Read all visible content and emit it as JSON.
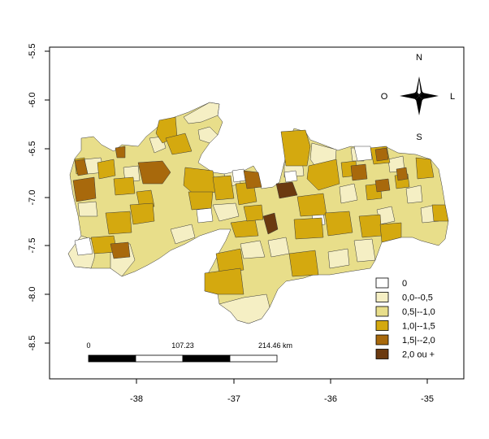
{
  "axes": {
    "x_ticks": [
      "-38",
      "-37",
      "-36",
      "-35"
    ],
    "y_ticks": [
      "-5.5",
      "-6.0",
      "-6.5",
      "-7.0",
      "-7.5",
      "-8.0",
      "-8.5"
    ]
  },
  "compass": {
    "north": "N",
    "south": "S",
    "east": "L",
    "west": "O"
  },
  "scale_bar": {
    "labels": [
      "0",
      "107.23",
      "214.46 km"
    ]
  },
  "legend": {
    "items": [
      {
        "label": "0",
        "color": "#ffffff"
      },
      {
        "label": "0,0--0,5",
        "color": "#f5efc4"
      },
      {
        "label": "0,5|--1,0",
        "color": "#e8de8a"
      },
      {
        "label": "1,0|--1,5",
        "color": "#d4a90f"
      },
      {
        "label": "1,5|--2,0",
        "color": "#a8690c"
      },
      {
        "label": "2,0 ou +",
        "color": "#6b3a10"
      }
    ]
  }
}
